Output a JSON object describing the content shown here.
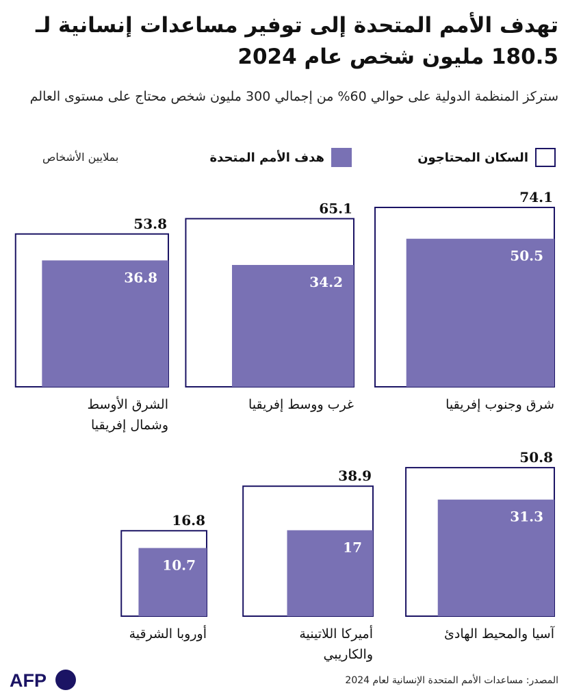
{
  "title": "تهدف الأمم المتحدة إلى توفير مساعدات إنسانية لـ 180.5 مليون شخص عام 2024",
  "subtitle": "ستركز المنظمة الدولية على حوالي 60% من إجمالي 300 مليون شخص محتاج على مستوى العالم",
  "legend": {
    "needy_label": "السكان المحتاجون",
    "target_label": "هدف الأمم المتحدة",
    "units": "بملايين الأشخاص"
  },
  "colors": {
    "outline": "#1b1464",
    "target_fill": "#7971b4"
  },
  "chart_data": {
    "type": "nested-square",
    "series": [
      {
        "name": "السكان المحتاجون",
        "values": [
          74.1,
          65.1,
          53.8,
          50.8,
          38.9,
          16.8
        ]
      },
      {
        "name": "هدف الأمم المتحدة",
        "values": [
          50.5,
          34.2,
          36.8,
          31.3,
          17,
          10.7
        ]
      }
    ],
    "categories": [
      [
        "شرق وجنوب إفريقيا"
      ],
      [
        "غرب ووسط إفريقيا"
      ],
      [
        "الشرق الأوسط",
        "وشمال إفريقيا"
      ],
      [
        "آسيا والمحيط الهادئ"
      ],
      [
        "أميركا اللاتينية",
        "والكاريبي"
      ],
      [
        "أوروبا الشرقية"
      ]
    ],
    "needy_labels": [
      "74.1",
      "65.1",
      "53.8",
      "50.8",
      "38.9",
      "16.8"
    ],
    "target_labels": [
      "50.5",
      "34.2",
      "36.8",
      "31.3",
      "17",
      "10.7"
    ]
  },
  "source": "المصدر: مساعدات الأمم المتحدة الإنسانية لعام 2024",
  "logo_text": "AFP"
}
